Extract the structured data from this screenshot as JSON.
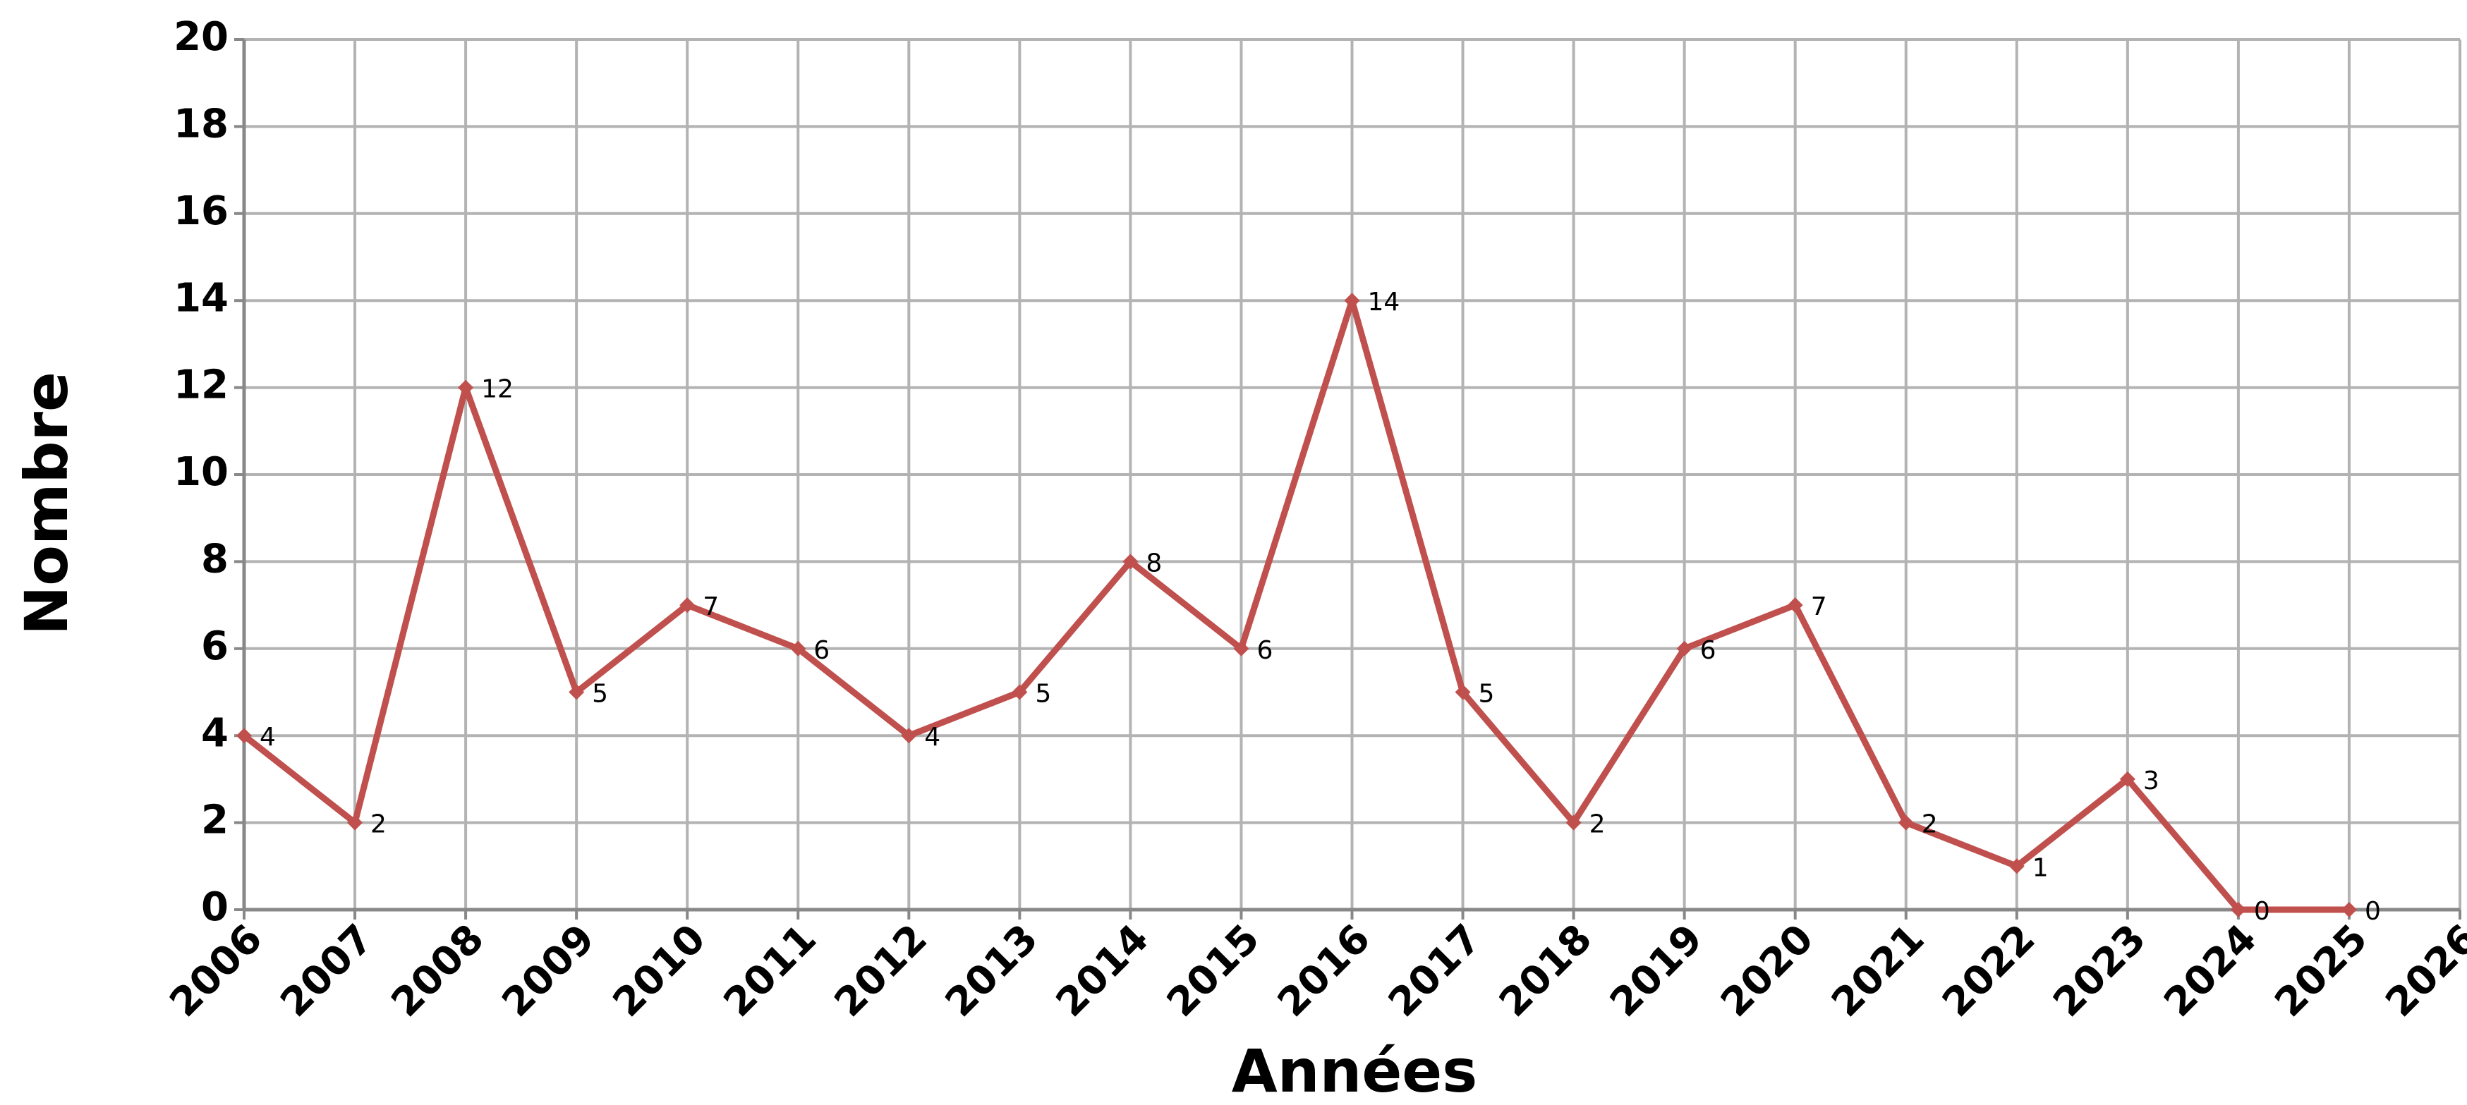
{
  "chart_data": {
    "type": "line",
    "x_label": "Années",
    "y_label": "Nombre",
    "x": [
      2006,
      2007,
      2008,
      2009,
      2010,
      2011,
      2012,
      2013,
      2014,
      2015,
      2016,
      2017,
      2018,
      2019,
      2020,
      2021,
      2022,
      2023,
      2024,
      2025
    ],
    "values": [
      4,
      2,
      12,
      5,
      7,
      6,
      4,
      5,
      8,
      6,
      14,
      5,
      2,
      6,
      7,
      2,
      1,
      3,
      0,
      0
    ],
    "color": "#c0504d",
    "xlim": [
      2006,
      2026
    ],
    "xticks": [
      2006,
      2007,
      2008,
      2009,
      2010,
      2011,
      2012,
      2013,
      2014,
      2015,
      2016,
      2017,
      2018,
      2019,
      2020,
      2021,
      2022,
      2023,
      2024,
      2025,
      2026
    ],
    "ylim": [
      0,
      20
    ],
    "yticks": [
      0,
      2,
      4,
      6,
      8,
      10,
      12,
      14,
      16,
      18,
      20
    ],
    "grid": true
  }
}
